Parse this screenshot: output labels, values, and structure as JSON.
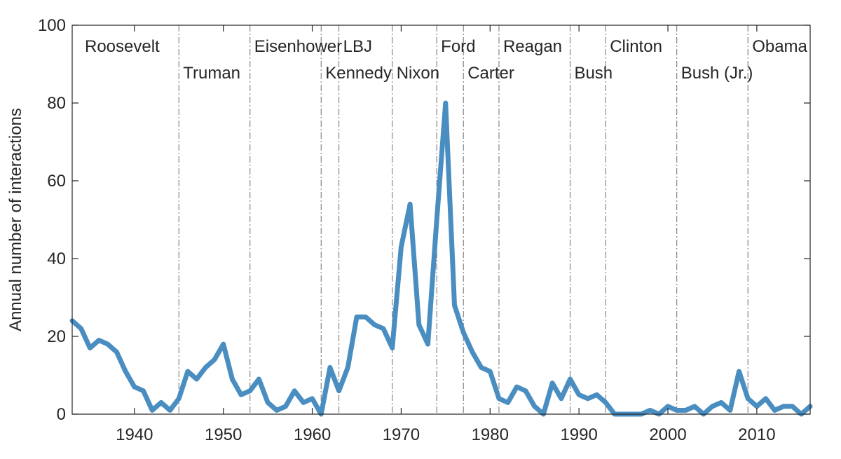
{
  "chart_data": {
    "type": "line",
    "title": "",
    "xlabel": "",
    "ylabel": "Annual number of interactions",
    "xlim": [
      1933,
      2016
    ],
    "ylim": [
      0,
      100
    ],
    "xticks": [
      1940,
      1950,
      1960,
      1970,
      1980,
      1990,
      2000,
      2010
    ],
    "yticks": [
      0,
      20,
      40,
      60,
      80,
      100
    ],
    "grid": false,
    "line_color": "#4a8ec1",
    "divider_color": "#6e6e6e",
    "series": [
      {
        "x": [
          1933,
          1934,
          1935,
          1936,
          1937,
          1938,
          1939,
          1940,
          1941,
          1942,
          1943,
          1944,
          1945,
          1946,
          1947,
          1948,
          1949,
          1950,
          1951,
          1952,
          1953,
          1954,
          1955,
          1956,
          1957,
          1958,
          1959,
          1960,
          1961,
          1962,
          1963,
          1964,
          1965,
          1966,
          1967,
          1968,
          1969,
          1970,
          1971,
          1972,
          1973,
          1974,
          1975,
          1976,
          1977,
          1978,
          1979,
          1980,
          1981,
          1982,
          1983,
          1984,
          1985,
          1986,
          1987,
          1988,
          1989,
          1990,
          1991,
          1992,
          1993,
          1994,
          1995,
          1996,
          1997,
          1998,
          1999,
          2000,
          2001,
          2002,
          2003,
          2004,
          2005,
          2006,
          2007,
          2008,
          2009,
          2010,
          2011,
          2012,
          2013,
          2014,
          2015,
          2016
        ],
        "y": [
          24,
          22,
          17,
          19,
          18,
          16,
          11,
          7,
          6,
          1,
          3,
          1,
          4,
          11,
          9,
          12,
          14,
          18,
          9,
          5,
          6,
          9,
          3,
          1,
          2,
          6,
          3,
          4,
          0,
          12,
          6,
          12,
          25,
          25,
          23,
          22,
          17,
          43,
          54,
          23,
          18,
          50,
          80,
          28,
          21,
          16,
          12,
          11,
          4,
          3,
          7,
          6,
          2,
          0,
          8,
          4,
          9,
          5,
          4,
          5,
          3,
          0,
          0,
          0,
          0,
          1,
          0,
          2,
          1,
          1,
          2,
          0,
          2,
          3,
          1,
          11,
          4,
          2,
          4,
          1,
          2,
          2,
          0,
          2
        ]
      }
    ],
    "presidents": [
      {
        "name": "Roosevelt",
        "start": 1933,
        "row": 1
      },
      {
        "name": "Truman",
        "start": 1945,
        "row": 2
      },
      {
        "name": "Eisenhower",
        "start": 1953,
        "row": 1
      },
      {
        "name": "Kennedy",
        "start": 1961,
        "row": 2
      },
      {
        "name": "LBJ",
        "start": 1963,
        "row": 1
      },
      {
        "name": "Nixon",
        "start": 1969,
        "row": 2
      },
      {
        "name": "Ford",
        "start": 1974,
        "row": 1
      },
      {
        "name": "Carter",
        "start": 1977,
        "row": 2
      },
      {
        "name": "Reagan",
        "start": 1981,
        "row": 1
      },
      {
        "name": "Bush",
        "start": 1989,
        "row": 2
      },
      {
        "name": "Clinton",
        "start": 1993,
        "row": 1
      },
      {
        "name": "Bush (Jr.)",
        "start": 2001,
        "row": 2
      },
      {
        "name": "Obama",
        "start": 2009,
        "row": 1
      }
    ]
  }
}
